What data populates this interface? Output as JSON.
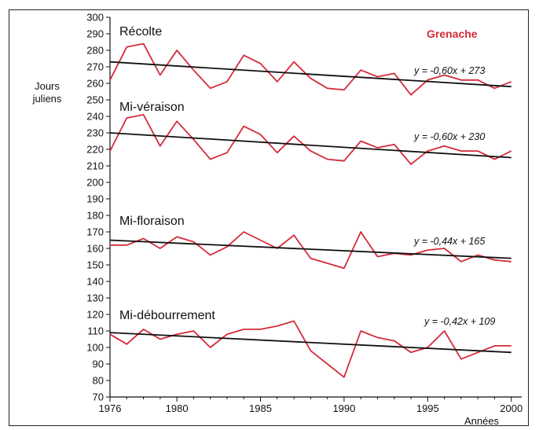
{
  "chart_data": {
    "type": "line",
    "title": "Grenache",
    "title_color": "#d42b3a",
    "ylabel_lines": [
      "Jours",
      "juliens"
    ],
    "xlabel": "Années",
    "xlim": [
      1976,
      2001
    ],
    "ylim": [
      70,
      300
    ],
    "x_ticks": [
      1976,
      1980,
      1985,
      1990,
      1995,
      2000
    ],
    "y_ticks": [
      70,
      80,
      90,
      100,
      110,
      120,
      130,
      140,
      150,
      160,
      170,
      180,
      190,
      200,
      210,
      220,
      230,
      240,
      250,
      260,
      270,
      280,
      290,
      300
    ],
    "series_color": "#d42b3a",
    "trend_color": "#111111",
    "x": [
      1976,
      1977,
      1978,
      1979,
      1980,
      1981,
      1982,
      1983,
      1984,
      1985,
      1986,
      1987,
      1988,
      1989,
      1990,
      1991,
      1992,
      1993,
      1994,
      1995,
      1996,
      1997,
      1998,
      1999,
      2000
    ],
    "series": [
      {
        "label": "Récolte",
        "equation": "y = -0,60x + 273",
        "values": [
          262,
          282,
          284,
          265,
          280,
          268,
          257,
          261,
          277,
          272,
          261,
          273,
          263,
          257,
          256,
          268,
          264,
          266,
          253,
          262,
          265,
          262,
          262,
          257,
          261
        ],
        "trend": [
          273,
          258
        ]
      },
      {
        "label": "Mi-véraison",
        "equation": "y = -0,60x + 230",
        "values": [
          219,
          239,
          241,
          222,
          237,
          226,
          214,
          218,
          234,
          229,
          218,
          228,
          219,
          214,
          213,
          225,
          221,
          223,
          211,
          219,
          222,
          219,
          219,
          214,
          219
        ],
        "trend": [
          230,
          215
        ]
      },
      {
        "label": "Mi-floraison",
        "equation": "y = -0,44x + 165",
        "values": [
          162,
          162,
          166,
          160,
          167,
          164,
          156,
          161,
          170,
          165,
          160,
          168,
          154,
          151,
          148,
          170,
          155,
          157,
          156,
          159,
          160,
          152,
          156,
          153,
          152
        ],
        "trend": [
          165,
          154
        ]
      },
      {
        "label": "Mi-débourrement",
        "equation": "y = -0,42x + 109",
        "values": [
          108,
          102,
          111,
          105,
          108,
          110,
          100,
          108,
          111,
          111,
          113,
          116,
          98,
          90,
          82,
          110,
          106,
          104,
          97,
          100,
          110,
          93,
          97,
          101,
          101
        ],
        "trend": [
          109,
          97
        ]
      }
    ]
  }
}
